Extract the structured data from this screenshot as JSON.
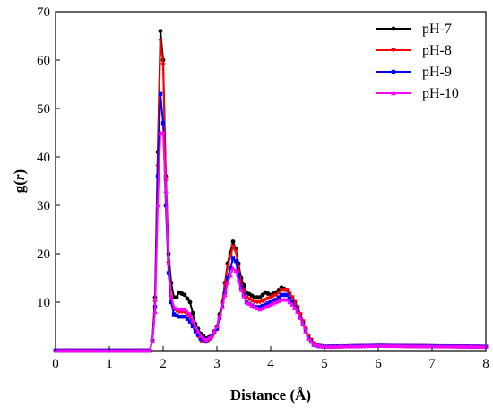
{
  "chart_data": {
    "type": "line",
    "title": "",
    "xlabel": "Distance (Å)",
    "ylabel_main": "g(",
    "ylabel_var": "r",
    "ylabel_close": ")",
    "xlim": [
      0,
      8
    ],
    "ylim": [
      0,
      70
    ],
    "xticks": [
      0,
      1,
      2,
      3,
      4,
      5,
      6,
      7,
      8
    ],
    "yticks": [
      10,
      20,
      30,
      40,
      50,
      60,
      70
    ],
    "grid": false,
    "legend_position": "top-right",
    "series": [
      {
        "name": "pH-7",
        "color": "#000000",
        "marker": "circle",
        "points": [
          [
            0,
            0
          ],
          [
            0.5,
            0
          ],
          [
            1.0,
            0
          ],
          [
            1.5,
            0
          ],
          [
            1.75,
            0
          ],
          [
            1.8,
            2
          ],
          [
            1.85,
            11
          ],
          [
            1.9,
            41
          ],
          [
            1.95,
            66
          ],
          [
            2.0,
            60
          ],
          [
            2.05,
            36
          ],
          [
            2.1,
            20
          ],
          [
            2.15,
            14
          ],
          [
            2.2,
            11
          ],
          [
            2.25,
            11
          ],
          [
            2.3,
            12
          ],
          [
            2.4,
            11.5
          ],
          [
            2.5,
            10
          ],
          [
            2.6,
            5.5
          ],
          [
            2.7,
            3.5
          ],
          [
            2.8,
            2.5
          ],
          [
            2.9,
            3
          ],
          [
            3.0,
            5
          ],
          [
            3.1,
            10
          ],
          [
            3.2,
            18
          ],
          [
            3.3,
            22.5
          ],
          [
            3.35,
            21
          ],
          [
            3.45,
            15
          ],
          [
            3.55,
            12
          ],
          [
            3.7,
            11
          ],
          [
            3.8,
            11
          ],
          [
            3.9,
            12
          ],
          [
            4.0,
            11.5
          ],
          [
            4.1,
            12
          ],
          [
            4.2,
            13
          ],
          [
            4.3,
            12.5
          ],
          [
            4.4,
            11
          ],
          [
            4.5,
            9
          ],
          [
            4.6,
            6
          ],
          [
            4.7,
            3
          ],
          [
            4.8,
            1.5
          ],
          [
            4.9,
            1
          ],
          [
            5.0,
            0.8
          ],
          [
            6.0,
            1
          ],
          [
            7.0,
            0.9
          ],
          [
            8.0,
            0.8
          ]
        ]
      },
      {
        "name": "pH-8",
        "color": "#ff0000",
        "marker": "triangle-down",
        "points": [
          [
            0,
            0
          ],
          [
            0.5,
            0
          ],
          [
            1.0,
            0
          ],
          [
            1.5,
            0
          ],
          [
            1.75,
            0
          ],
          [
            1.8,
            2
          ],
          [
            1.85,
            10
          ],
          [
            1.9,
            38
          ],
          [
            1.95,
            64
          ],
          [
            2.0,
            59
          ],
          [
            2.05,
            35
          ],
          [
            2.1,
            18
          ],
          [
            2.15,
            11
          ],
          [
            2.2,
            8.5
          ],
          [
            2.3,
            8
          ],
          [
            2.4,
            8
          ],
          [
            2.5,
            7
          ],
          [
            2.6,
            4
          ],
          [
            2.7,
            2
          ],
          [
            2.8,
            1.8
          ],
          [
            2.9,
            2.5
          ],
          [
            3.0,
            4.5
          ],
          [
            3.1,
            9.5
          ],
          [
            3.2,
            17.5
          ],
          [
            3.3,
            21.5
          ],
          [
            3.35,
            20.5
          ],
          [
            3.45,
            14
          ],
          [
            3.55,
            11
          ],
          [
            3.7,
            10
          ],
          [
            3.8,
            10
          ],
          [
            3.9,
            10.5
          ],
          [
            4.0,
            11
          ],
          [
            4.1,
            11.5
          ],
          [
            4.2,
            12.5
          ],
          [
            4.3,
            12.5
          ],
          [
            4.4,
            11
          ],
          [
            4.5,
            9
          ],
          [
            4.6,
            6
          ],
          [
            4.7,
            3
          ],
          [
            4.8,
            1.5
          ],
          [
            4.9,
            1
          ],
          [
            5.0,
            0.8
          ],
          [
            6.0,
            1
          ],
          [
            7.0,
            0.9
          ],
          [
            8.0,
            0.8
          ]
        ]
      },
      {
        "name": "pH-9",
        "color": "#0000ff",
        "marker": "square",
        "points": [
          [
            0,
            0
          ],
          [
            0.5,
            0
          ],
          [
            1.0,
            0
          ],
          [
            1.5,
            0
          ],
          [
            1.75,
            0
          ],
          [
            1.8,
            2
          ],
          [
            1.85,
            9
          ],
          [
            1.9,
            36
          ],
          [
            1.95,
            53
          ],
          [
            2.0,
            47
          ],
          [
            2.05,
            30
          ],
          [
            2.1,
            16
          ],
          [
            2.15,
            10
          ],
          [
            2.2,
            7.5
          ],
          [
            2.3,
            7
          ],
          [
            2.4,
            7
          ],
          [
            2.5,
            6
          ],
          [
            2.6,
            4
          ],
          [
            2.7,
            2.5
          ],
          [
            2.8,
            2
          ],
          [
            2.9,
            3
          ],
          [
            3.0,
            4.5
          ],
          [
            3.1,
            9
          ],
          [
            3.2,
            15
          ],
          [
            3.3,
            19
          ],
          [
            3.35,
            18.5
          ],
          [
            3.45,
            13
          ],
          [
            3.55,
            10
          ],
          [
            3.7,
            9
          ],
          [
            3.8,
            9
          ],
          [
            3.9,
            9.5
          ],
          [
            4.0,
            10
          ],
          [
            4.1,
            10.5
          ],
          [
            4.2,
            11.5
          ],
          [
            4.3,
            11.5
          ],
          [
            4.4,
            10
          ],
          [
            4.5,
            8
          ],
          [
            4.6,
            5.5
          ],
          [
            4.7,
            2.5
          ],
          [
            4.8,
            1.2
          ],
          [
            4.9,
            0.9
          ],
          [
            5.0,
            0.8
          ],
          [
            6.0,
            1
          ],
          [
            7.0,
            0.9
          ],
          [
            8.0,
            0.8
          ]
        ]
      },
      {
        "name": "pH-10",
        "color": "#ff00ff",
        "marker": "triangle-up",
        "points": [
          [
            0,
            0
          ],
          [
            0.5,
            0
          ],
          [
            1.0,
            0
          ],
          [
            1.5,
            0
          ],
          [
            1.75,
            0
          ],
          [
            1.8,
            2
          ],
          [
            1.85,
            8
          ],
          [
            1.9,
            30
          ],
          [
            1.95,
            45
          ],
          [
            2.0,
            45
          ],
          [
            2.05,
            33
          ],
          [
            2.1,
            18
          ],
          [
            2.15,
            11
          ],
          [
            2.2,
            9
          ],
          [
            2.3,
            8.5
          ],
          [
            2.4,
            8.5
          ],
          [
            2.5,
            7.5
          ],
          [
            2.6,
            5
          ],
          [
            2.7,
            3
          ],
          [
            2.8,
            2.2
          ],
          [
            2.9,
            3
          ],
          [
            3.0,
            5
          ],
          [
            3.1,
            9
          ],
          [
            3.2,
            14
          ],
          [
            3.3,
            17
          ],
          [
            3.35,
            16.5
          ],
          [
            3.45,
            12.5
          ],
          [
            3.55,
            10
          ],
          [
            3.7,
            9
          ],
          [
            3.8,
            8.5
          ],
          [
            3.9,
            9
          ],
          [
            4.0,
            9.5
          ],
          [
            4.1,
            10
          ],
          [
            4.2,
            10.5
          ],
          [
            4.3,
            10.5
          ],
          [
            4.4,
            9.5
          ],
          [
            4.5,
            8
          ],
          [
            4.6,
            5.5
          ],
          [
            4.7,
            2.5
          ],
          [
            4.8,
            1.3
          ],
          [
            4.9,
            1
          ],
          [
            5.0,
            0.8
          ],
          [
            6.0,
            1
          ],
          [
            7.0,
            0.9
          ],
          [
            8.0,
            0.8
          ]
        ]
      }
    ]
  }
}
